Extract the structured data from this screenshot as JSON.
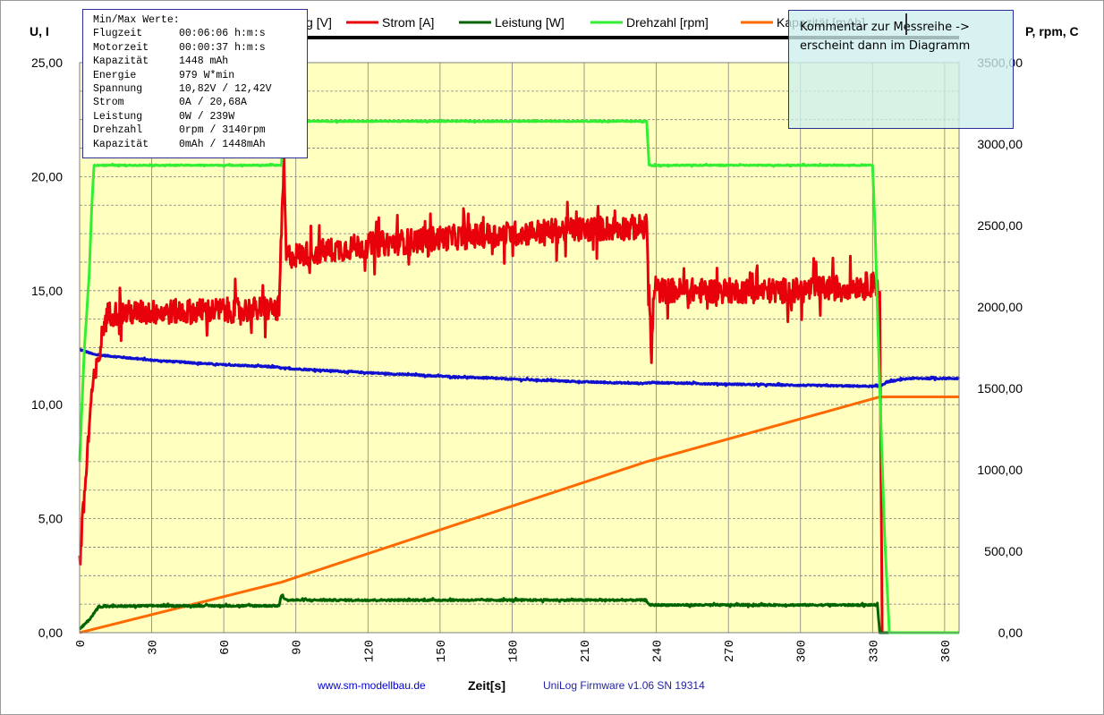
{
  "chart_data": {
    "type": "line",
    "xlabel": "Zeit[s]",
    "ylabel_left": "U, I",
    "ylabel_right": "P, rpm, C",
    "xlim": [
      0,
      366
    ],
    "ylim_left": [
      0,
      25
    ],
    "ylim_right": [
      0,
      3500
    ],
    "x_ticks": [
      "0",
      "30",
      "60",
      "90",
      "120",
      "150",
      "180",
      "210",
      "240",
      "270",
      "300",
      "330",
      "360"
    ],
    "y_left_ticks": [
      "0,00",
      "5,00",
      "10,00",
      "15,00",
      "20,00",
      "25,00"
    ],
    "y_right_ticks": [
      "0,00",
      "500,00",
      "1000,00",
      "1500,00",
      "2000,00",
      "2500,00",
      "3000,00",
      "3500,00"
    ],
    "grid": true,
    "legend_position": "top",
    "series": [
      {
        "name": "Spannung [V]",
        "axis": "left",
        "color": "#1010d0",
        "noise": 0.03,
        "points": [
          [
            0,
            12.42
          ],
          [
            6,
            12.2
          ],
          [
            30,
            11.95
          ],
          [
            60,
            11.75
          ],
          [
            82,
            11.65
          ],
          [
            84,
            11.6
          ],
          [
            120,
            11.4
          ],
          [
            150,
            11.25
          ],
          [
            180,
            11.12
          ],
          [
            210,
            11.0
          ],
          [
            234,
            10.93
          ],
          [
            238,
            10.97
          ],
          [
            270,
            10.9
          ],
          [
            300,
            10.85
          ],
          [
            333,
            10.8
          ],
          [
            336,
            11.0
          ],
          [
            345,
            11.15
          ],
          [
            366,
            11.15
          ]
        ]
      },
      {
        "name": "Strom [A]",
        "axis": "left",
        "color": "#e8000a",
        "noise": 0.55,
        "points": [
          [
            0,
            3.0
          ],
          [
            2,
            6.0
          ],
          [
            4,
            9.0
          ],
          [
            5,
            10.5
          ],
          [
            8,
            12.0
          ],
          [
            10,
            13.5
          ],
          [
            12,
            14.0
          ],
          [
            83,
            14.2
          ],
          [
            84,
            17.5
          ],
          [
            85,
            20.5
          ],
          [
            86,
            16.5
          ],
          [
            120,
            17.0
          ],
          [
            150,
            17.3
          ],
          [
            180,
            17.5
          ],
          [
            210,
            17.7
          ],
          [
            236,
            17.8
          ],
          [
            237,
            15.0
          ],
          [
            238,
            12.0
          ],
          [
            239,
            15.0
          ],
          [
            270,
            15.0
          ],
          [
            300,
            15.0
          ],
          [
            332,
            15.3
          ],
          [
            333,
            14.5
          ],
          [
            334,
            0.0
          ],
          [
            366,
            0.0
          ]
        ]
      },
      {
        "name": "Leistung [W]",
        "axis": "right",
        "color": "#006400",
        "noise": 5,
        "points": [
          [
            0,
            20
          ],
          [
            4,
            80
          ],
          [
            8,
            160
          ],
          [
            30,
            165
          ],
          [
            83,
            165
          ],
          [
            84,
            230
          ],
          [
            86,
            200
          ],
          [
            150,
            200
          ],
          [
            236,
            200
          ],
          [
            237,
            170
          ],
          [
            300,
            170
          ],
          [
            332,
            170
          ],
          [
            333,
            0
          ],
          [
            366,
            0
          ]
        ]
      },
      {
        "name": "Drehzahl [rpm]",
        "axis": "right",
        "color": "#33ee33",
        "noise": 3,
        "points": [
          [
            0,
            1050
          ],
          [
            2,
            1750
          ],
          [
            4,
            2200
          ],
          [
            5,
            2600
          ],
          [
            6,
            2870
          ],
          [
            83,
            2870
          ],
          [
            84,
            2870
          ],
          [
            85,
            3140
          ],
          [
            236,
            3140
          ],
          [
            237,
            2870
          ],
          [
            330,
            2870
          ],
          [
            331,
            2500
          ],
          [
            333,
            1500
          ],
          [
            335,
            600
          ],
          [
            337,
            0
          ],
          [
            366,
            0
          ]
        ]
      },
      {
        "name": "Kapazität [mAh]",
        "axis": "right",
        "color": "#ff6a00",
        "noise": 0,
        "points": [
          [
            0,
            0
          ],
          [
            84,
            310
          ],
          [
            236,
            1050
          ],
          [
            333,
            1448
          ],
          [
            366,
            1448
          ]
        ]
      }
    ]
  },
  "stats": {
    "header": "Min/Max Werte:",
    "rows": [
      {
        "label": "Flugzeit",
        "value": "00:06:06 h:m:s"
      },
      {
        "label": "Motorzeit",
        "value": "00:00:37 h:m:s"
      },
      {
        "label": "Kapazität",
        "value": "1448 mAh"
      },
      {
        "label": "Energie",
        "value": "979 W*min"
      },
      {
        "label": "Spannung",
        "value": "10,82V / 12,42V"
      },
      {
        "label": "Strom",
        "value": "0A / 20,68A"
      },
      {
        "label": "Leistung",
        "value": "0W / 239W"
      },
      {
        "label": "Drehzahl",
        "value": "0rpm / 3140rpm"
      },
      {
        "label": "Kapazität",
        "value": "0mAh / 1448mAh"
      }
    ]
  },
  "comment": {
    "line1": "Kommentar zur Messreihe ->",
    "line2": "erscheint dann im Diagramm"
  },
  "footer": {
    "website": "www.sm-modellbau.de",
    "firmware": "UniLog Firmware  v1.06 SN 19314"
  },
  "colors": {
    "plot_background": "#ffffc0",
    "grid_line": "#808080",
    "website_text": "#0000cc",
    "firmware_text": "#2222aa"
  }
}
